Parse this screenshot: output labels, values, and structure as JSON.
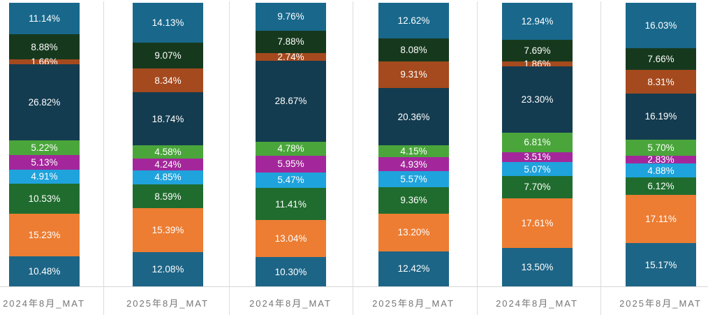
{
  "chart_data": {
    "type": "bar",
    "stacked": true,
    "stack_order": "top-to-bottom",
    "unit": "%",
    "title": "",
    "xlabel": "",
    "ylabel": "",
    "ylim": [
      0,
      100
    ],
    "legend": "none",
    "grid": "vertical light-gray separators between category columns, bottom axis line",
    "data_label_format": "two decimals with % sign, white text inside segment",
    "categories": [
      "2024年8月_MAT",
      "2025年8月_MAT",
      "2024年8月_MAT",
      "2025年8月_MAT",
      "2024年8月_MAT",
      "2025年8月_MAT"
    ],
    "series": [
      {
        "name": "segment-1-teal-blue",
        "color": "#19688c",
        "values": [
          11.14,
          14.13,
          9.76,
          12.62,
          12.94,
          16.03
        ]
      },
      {
        "name": "segment-2-dark-green",
        "color": "#16391e",
        "values": [
          8.88,
          9.07,
          7.88,
          8.08,
          7.69,
          7.66
        ]
      },
      {
        "name": "segment-3-rust-brown",
        "color": "#a54a1e",
        "values": [
          1.66,
          8.34,
          2.74,
          9.31,
          1.86,
          8.31
        ]
      },
      {
        "name": "segment-4-dark-navy",
        "color": "#143c50",
        "values": [
          26.82,
          18.74,
          28.67,
          20.36,
          23.3,
          16.19
        ]
      },
      {
        "name": "segment-5-light-green",
        "color": "#4aa63b",
        "values": [
          5.22,
          4.58,
          4.78,
          4.15,
          6.81,
          5.7
        ]
      },
      {
        "name": "segment-6-magenta",
        "color": "#a3279b",
        "values": [
          5.13,
          4.24,
          5.95,
          4.93,
          3.51,
          2.83
        ]
      },
      {
        "name": "segment-7-light-blue",
        "color": "#1fa3dc",
        "values": [
          4.91,
          4.85,
          5.47,
          5.57,
          5.07,
          4.88
        ]
      },
      {
        "name": "segment-8-forest-green",
        "color": "#206c2e",
        "values": [
          10.53,
          8.59,
          11.41,
          9.36,
          7.7,
          6.12
        ]
      },
      {
        "name": "segment-9-orange",
        "color": "#ec7d33",
        "values": [
          15.23,
          15.39,
          13.04,
          13.2,
          17.61,
          17.11
        ]
      },
      {
        "name": "segment-10-teal-blue",
        "color": "#1d6586",
        "values": [
          10.48,
          12.08,
          10.3,
          12.42,
          13.5,
          15.17
        ]
      }
    ]
  },
  "colors": {
    "background": "#ffffff",
    "separator_line": "#dcdcdc",
    "axis_line": "#d6d6d6",
    "axis_label_text": "#757575",
    "data_label_text": "#ffffff"
  }
}
